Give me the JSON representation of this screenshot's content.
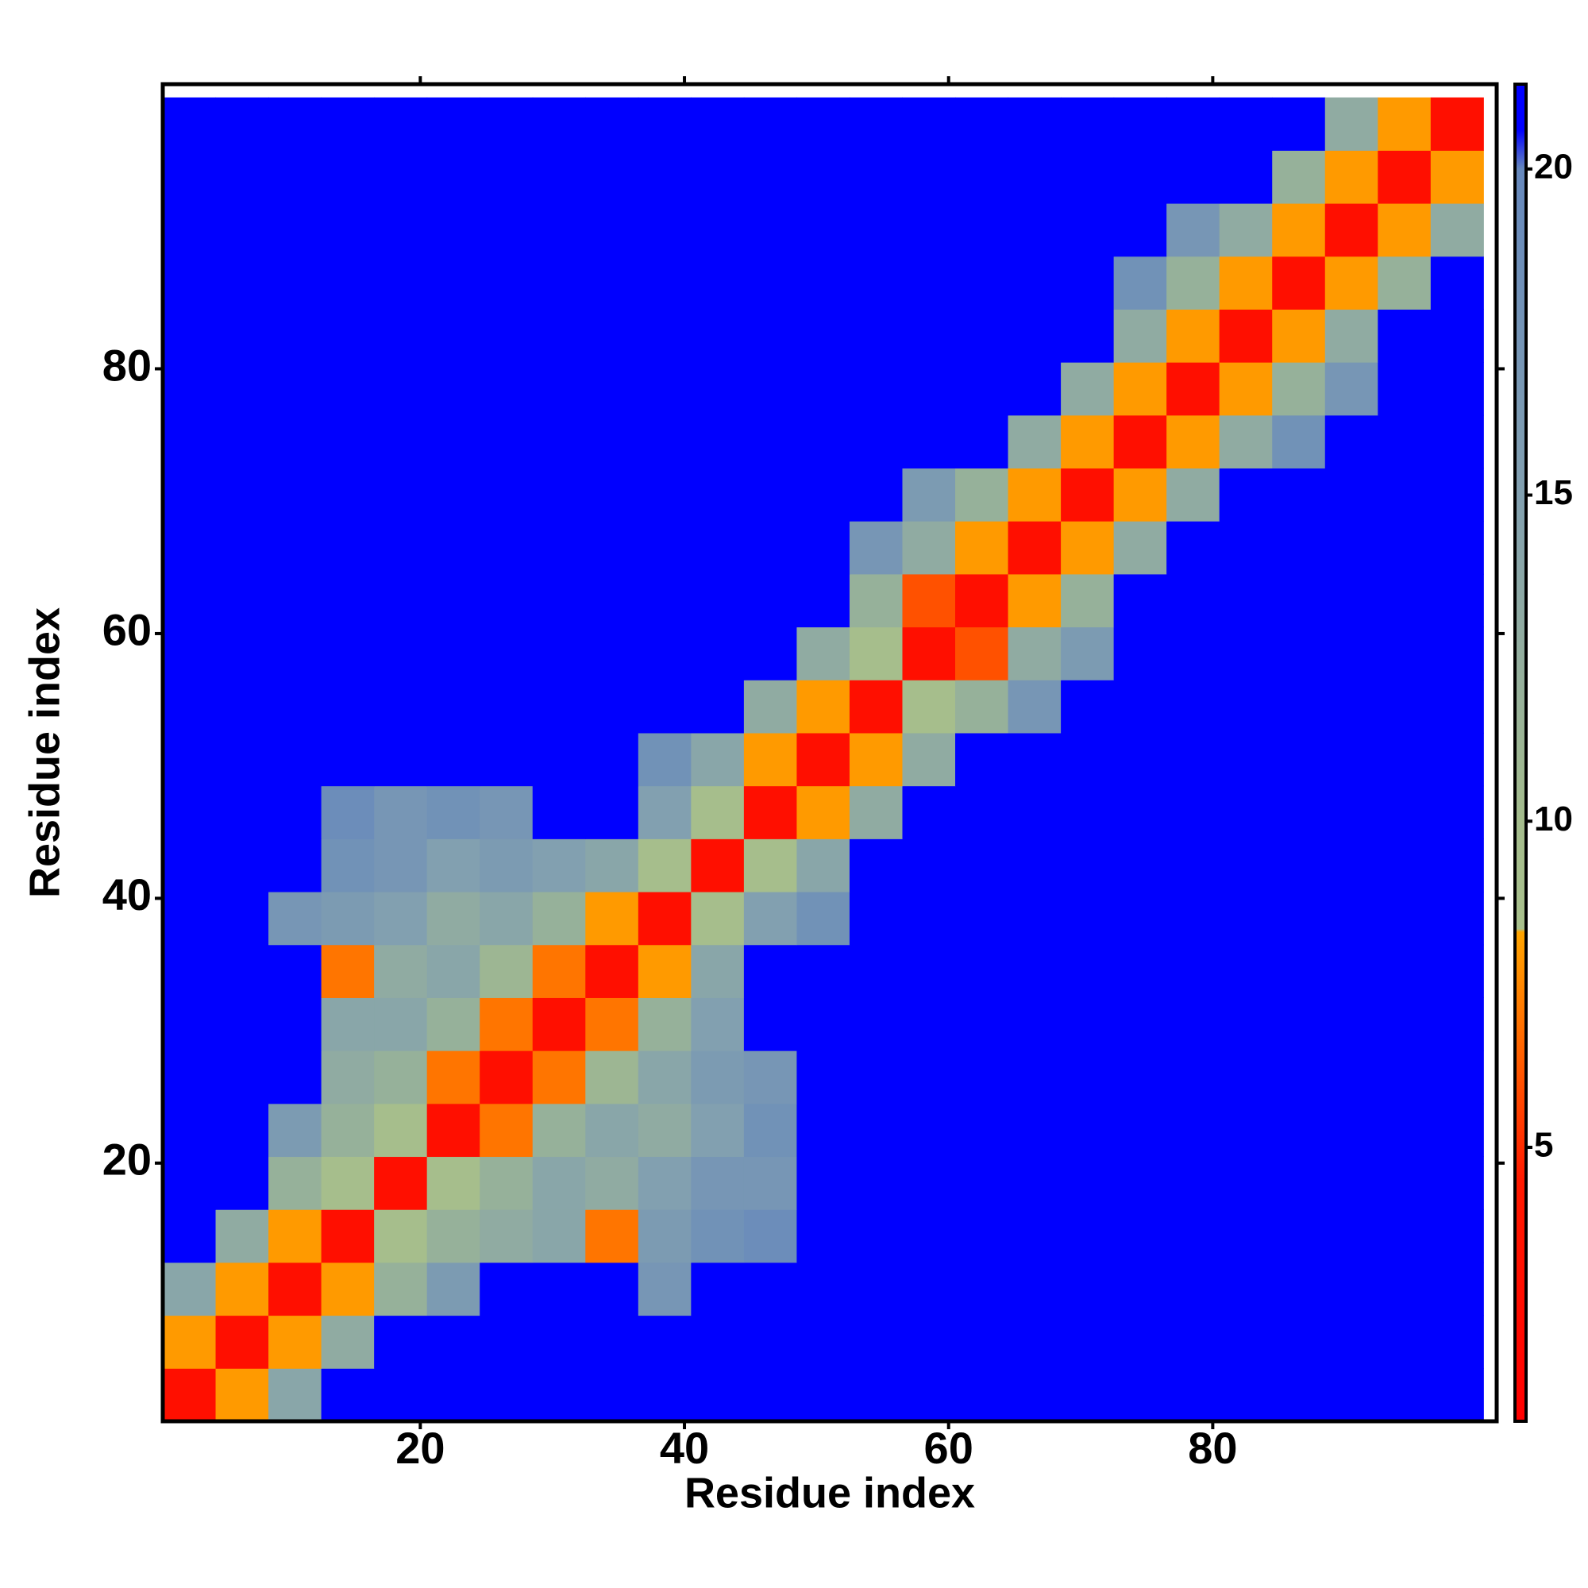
{
  "chart_data": {
    "type": "heatmap",
    "x_label": "Residue index",
    "y_label": "Residue index",
    "x": [
      2.5,
      6.5,
      10.5,
      14.5,
      18.5,
      22.5,
      26.5,
      30.5,
      34.5,
      38.5,
      42.5,
      46.5,
      50.5,
      54.5,
      58.5,
      62.5,
      66.5,
      70.5,
      74.5,
      78.5,
      82.5,
      86.5,
      90.5,
      94.5,
      98.5
    ],
    "y": [
      2.5,
      6.5,
      10.5,
      14.5,
      18.5,
      22.5,
      26.5,
      30.5,
      34.5,
      38.5,
      42.5,
      46.5,
      50.5,
      54.5,
      58.5,
      62.5,
      66.5,
      70.5,
      74.5,
      78.5,
      82.5,
      86.5,
      90.5,
      94.5,
      98.5
    ],
    "z": [
      [
        3,
        8,
        14,
        21,
        21,
        21,
        21,
        21,
        21,
        21,
        21,
        21,
        21,
        21,
        21,
        21,
        21,
        21,
        21,
        21,
        21,
        21,
        21,
        21,
        21
      ],
      [
        8,
        3,
        8,
        13,
        21,
        21,
        21,
        21,
        21,
        21,
        21,
        21,
        21,
        21,
        21,
        21,
        21,
        21,
        21,
        21,
        21,
        21,
        21,
        21,
        21
      ],
      [
        14,
        8,
        3,
        8,
        12,
        16,
        21,
        21,
        21,
        17,
        21,
        21,
        21,
        21,
        21,
        21,
        21,
        21,
        21,
        21,
        21,
        21,
        21,
        21,
        21
      ],
      [
        21,
        13,
        8,
        3,
        9,
        12,
        13,
        14,
        7,
        16,
        18,
        19,
        21,
        21,
        21,
        21,
        21,
        21,
        21,
        21,
        21,
        21,
        21,
        21,
        21
      ],
      [
        21,
        21,
        12,
        9,
        3,
        9,
        12,
        14,
        13,
        15,
        17,
        17,
        21,
        21,
        21,
        21,
        21,
        21,
        21,
        21,
        21,
        21,
        21,
        21,
        21
      ],
      [
        21,
        21,
        16,
        12,
        9,
        3,
        7,
        12,
        14,
        13,
        15,
        18,
        21,
        21,
        21,
        21,
        21,
        21,
        21,
        21,
        21,
        21,
        21,
        21,
        21
      ],
      [
        21,
        21,
        21,
        13,
        12,
        7,
        3,
        7,
        11,
        14,
        16,
        17,
        21,
        21,
        21,
        21,
        21,
        21,
        21,
        21,
        21,
        21,
        21,
        21,
        21
      ],
      [
        21,
        21,
        21,
        14,
        14,
        12,
        7,
        3,
        7,
        12,
        15,
        21,
        21,
        21,
        21,
        21,
        21,
        21,
        21,
        21,
        21,
        21,
        21,
        21,
        21
      ],
      [
        21,
        21,
        21,
        7,
        13,
        14,
        11,
        7,
        3,
        8,
        14,
        21,
        21,
        21,
        21,
        21,
        21,
        21,
        21,
        21,
        21,
        21,
        21,
        21,
        21
      ],
      [
        21,
        21,
        17,
        16,
        15,
        13,
        14,
        12,
        8,
        3,
        9,
        15,
        18,
        21,
        21,
        21,
        21,
        21,
        21,
        21,
        21,
        21,
        21,
        21,
        21
      ],
      [
        21,
        21,
        21,
        18,
        17,
        15,
        16,
        15,
        14,
        9,
        3,
        9,
        14,
        21,
        21,
        21,
        21,
        21,
        21,
        21,
        21,
        21,
        21,
        21,
        21
      ],
      [
        21,
        21,
        21,
        19,
        17,
        18,
        17,
        21,
        21,
        15,
        9,
        3,
        8,
        13,
        21,
        21,
        21,
        21,
        21,
        21,
        21,
        21,
        21,
        21,
        21
      ],
      [
        21,
        21,
        21,
        21,
        21,
        21,
        21,
        21,
        21,
        18,
        14,
        8,
        3,
        8,
        13,
        21,
        21,
        21,
        21,
        21,
        21,
        21,
        21,
        21,
        21
      ],
      [
        21,
        21,
        21,
        21,
        21,
        21,
        21,
        21,
        21,
        21,
        21,
        13,
        8,
        3,
        9,
        12,
        17,
        21,
        21,
        21,
        21,
        21,
        21,
        21,
        21
      ],
      [
        21,
        21,
        21,
        21,
        21,
        21,
        21,
        21,
        21,
        21,
        21,
        21,
        13,
        9,
        3,
        6,
        13,
        16,
        21,
        21,
        21,
        21,
        21,
        21,
        21
      ],
      [
        21,
        21,
        21,
        21,
        21,
        21,
        21,
        21,
        21,
        21,
        21,
        21,
        21,
        12,
        6,
        3,
        8,
        12,
        21,
        21,
        21,
        21,
        21,
        21,
        21
      ],
      [
        21,
        21,
        21,
        21,
        21,
        21,
        21,
        21,
        21,
        21,
        21,
        21,
        21,
        17,
        13,
        8,
        3,
        8,
        13,
        21,
        21,
        21,
        21,
        21,
        21
      ],
      [
        21,
        21,
        21,
        21,
        21,
        21,
        21,
        21,
        21,
        21,
        21,
        21,
        21,
        21,
        16,
        12,
        8,
        3,
        8,
        13,
        21,
        21,
        21,
        21,
        21
      ],
      [
        21,
        21,
        21,
        21,
        21,
        21,
        21,
        21,
        21,
        21,
        21,
        21,
        21,
        21,
        21,
        21,
        13,
        8,
        3,
        8,
        13,
        18,
        21,
        21,
        21
      ],
      [
        21,
        21,
        21,
        21,
        21,
        21,
        21,
        21,
        21,
        21,
        21,
        21,
        21,
        21,
        21,
        21,
        21,
        13,
        8,
        3,
        8,
        12,
        17,
        21,
        21
      ],
      [
        21,
        21,
        21,
        21,
        21,
        21,
        21,
        21,
        21,
        21,
        21,
        21,
        21,
        21,
        21,
        21,
        21,
        21,
        13,
        8,
        3,
        8,
        13,
        21,
        21
      ],
      [
        21,
        21,
        21,
        21,
        21,
        21,
        21,
        21,
        21,
        21,
        21,
        21,
        21,
        21,
        21,
        21,
        21,
        21,
        18,
        12,
        8,
        3,
        8,
        12,
        21
      ],
      [
        21,
        21,
        21,
        21,
        21,
        21,
        21,
        21,
        21,
        21,
        21,
        21,
        21,
        21,
        21,
        21,
        21,
        21,
        21,
        17,
        13,
        8,
        3,
        8,
        13
      ],
      [
        21,
        21,
        21,
        21,
        21,
        21,
        21,
        21,
        21,
        21,
        21,
        21,
        21,
        21,
        21,
        21,
        21,
        21,
        21,
        21,
        21,
        12,
        8,
        3,
        8
      ],
      [
        21,
        21,
        21,
        21,
        21,
        21,
        21,
        21,
        21,
        21,
        21,
        21,
        21,
        21,
        21,
        21,
        21,
        21,
        21,
        21,
        21,
        21,
        13,
        8,
        3
      ]
    ],
    "xlim": [
      0.5,
      101.5
    ],
    "ylim": [
      0.5,
      101.5
    ],
    "xticks": [
      20,
      40,
      60,
      80
    ],
    "yticks": [
      20,
      40,
      60,
      80
    ],
    "colorscale": [
      [
        0.8,
        "#ff0000"
      ],
      [
        4.5,
        "#ff1a00"
      ],
      [
        8.3,
        "#ffa500"
      ],
      [
        8.35,
        "#a8c08c"
      ],
      [
        10,
        "#a4bc8c"
      ],
      [
        15,
        "#82a0b0"
      ],
      [
        20,
        "#6688bc"
      ],
      [
        20.6,
        "#0000ff"
      ],
      [
        21.3,
        "#0000ff"
      ]
    ],
    "clim": [
      0.8,
      21.3
    ],
    "colorbar_ticks": [
      5,
      10,
      15,
      20
    ]
  }
}
